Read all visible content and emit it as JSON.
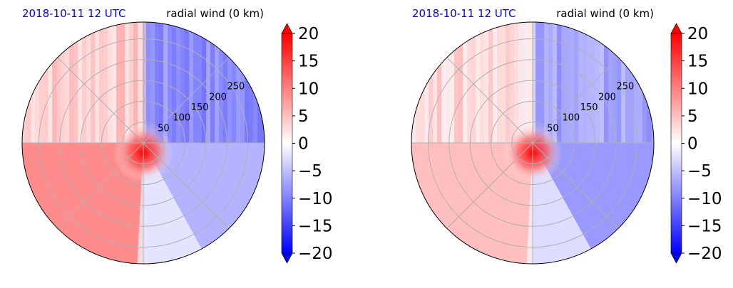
{
  "figure": {
    "colors": {
      "title_date": "#0000ff",
      "title_var": "#000000",
      "grid": "#b0b0b0",
      "cmap_low": "#0000ff",
      "cmap_mid": "#ffffff",
      "cmap_high": "#ff0000"
    }
  },
  "chart_data": [
    {
      "type": "heatmap",
      "projection": "polar",
      "title_left": "2018-10-11 12 UTC",
      "title_right": "radial wind (0 km)",
      "radial_ticks": [
        "50",
        "100",
        "150",
        "200",
        "250"
      ],
      "radial_tick_values": [
        50,
        100,
        150,
        200,
        250
      ],
      "r_max": 290,
      "angular_grid_deg": [
        0,
        45,
        90,
        135,
        180,
        225,
        270,
        315
      ],
      "colorbar": {
        "ticks": [
          "20",
          "15",
          "10",
          "5",
          "0",
          "−5",
          "−10",
          "−15",
          "−20"
        ],
        "tick_values": [
          20,
          15,
          10,
          5,
          0,
          -5,
          -10,
          -15,
          -20
        ],
        "vmin": -20,
        "vmax": 20,
        "extend": "both",
        "colormap": "bwr"
      },
      "field_summary": {
        "north_west_quadrant": 4,
        "north_east_quadrant": -9,
        "south_west_quadrant": 9,
        "south_east_quadrant": -6,
        "center_max": 20
      }
    },
    {
      "type": "heatmap",
      "projection": "polar",
      "title_left": "2018-10-11 12 UTC",
      "title_right": "radial wind (0 km)",
      "radial_ticks": [
        "50",
        "100",
        "150",
        "200",
        "250"
      ],
      "radial_tick_values": [
        50,
        100,
        150,
        200,
        250
      ],
      "r_max": 290,
      "angular_grid_deg": [
        0,
        45,
        90,
        135,
        180,
        225,
        270,
        315
      ],
      "colorbar": {
        "ticks": [
          "20",
          "15",
          "10",
          "5",
          "0",
          "−5",
          "−10",
          "−15",
          "−20"
        ],
        "tick_values": [
          20,
          15,
          10,
          5,
          0,
          -5,
          -10,
          -15,
          -20
        ],
        "vmin": -20,
        "vmax": 20,
        "extend": "both",
        "colormap": "bwr"
      },
      "field_summary": {
        "north_west_quadrant": 3,
        "north_east_quadrant": -7,
        "south_west_quadrant": 5,
        "south_east_quadrant": -8,
        "center_max": 20
      }
    }
  ]
}
